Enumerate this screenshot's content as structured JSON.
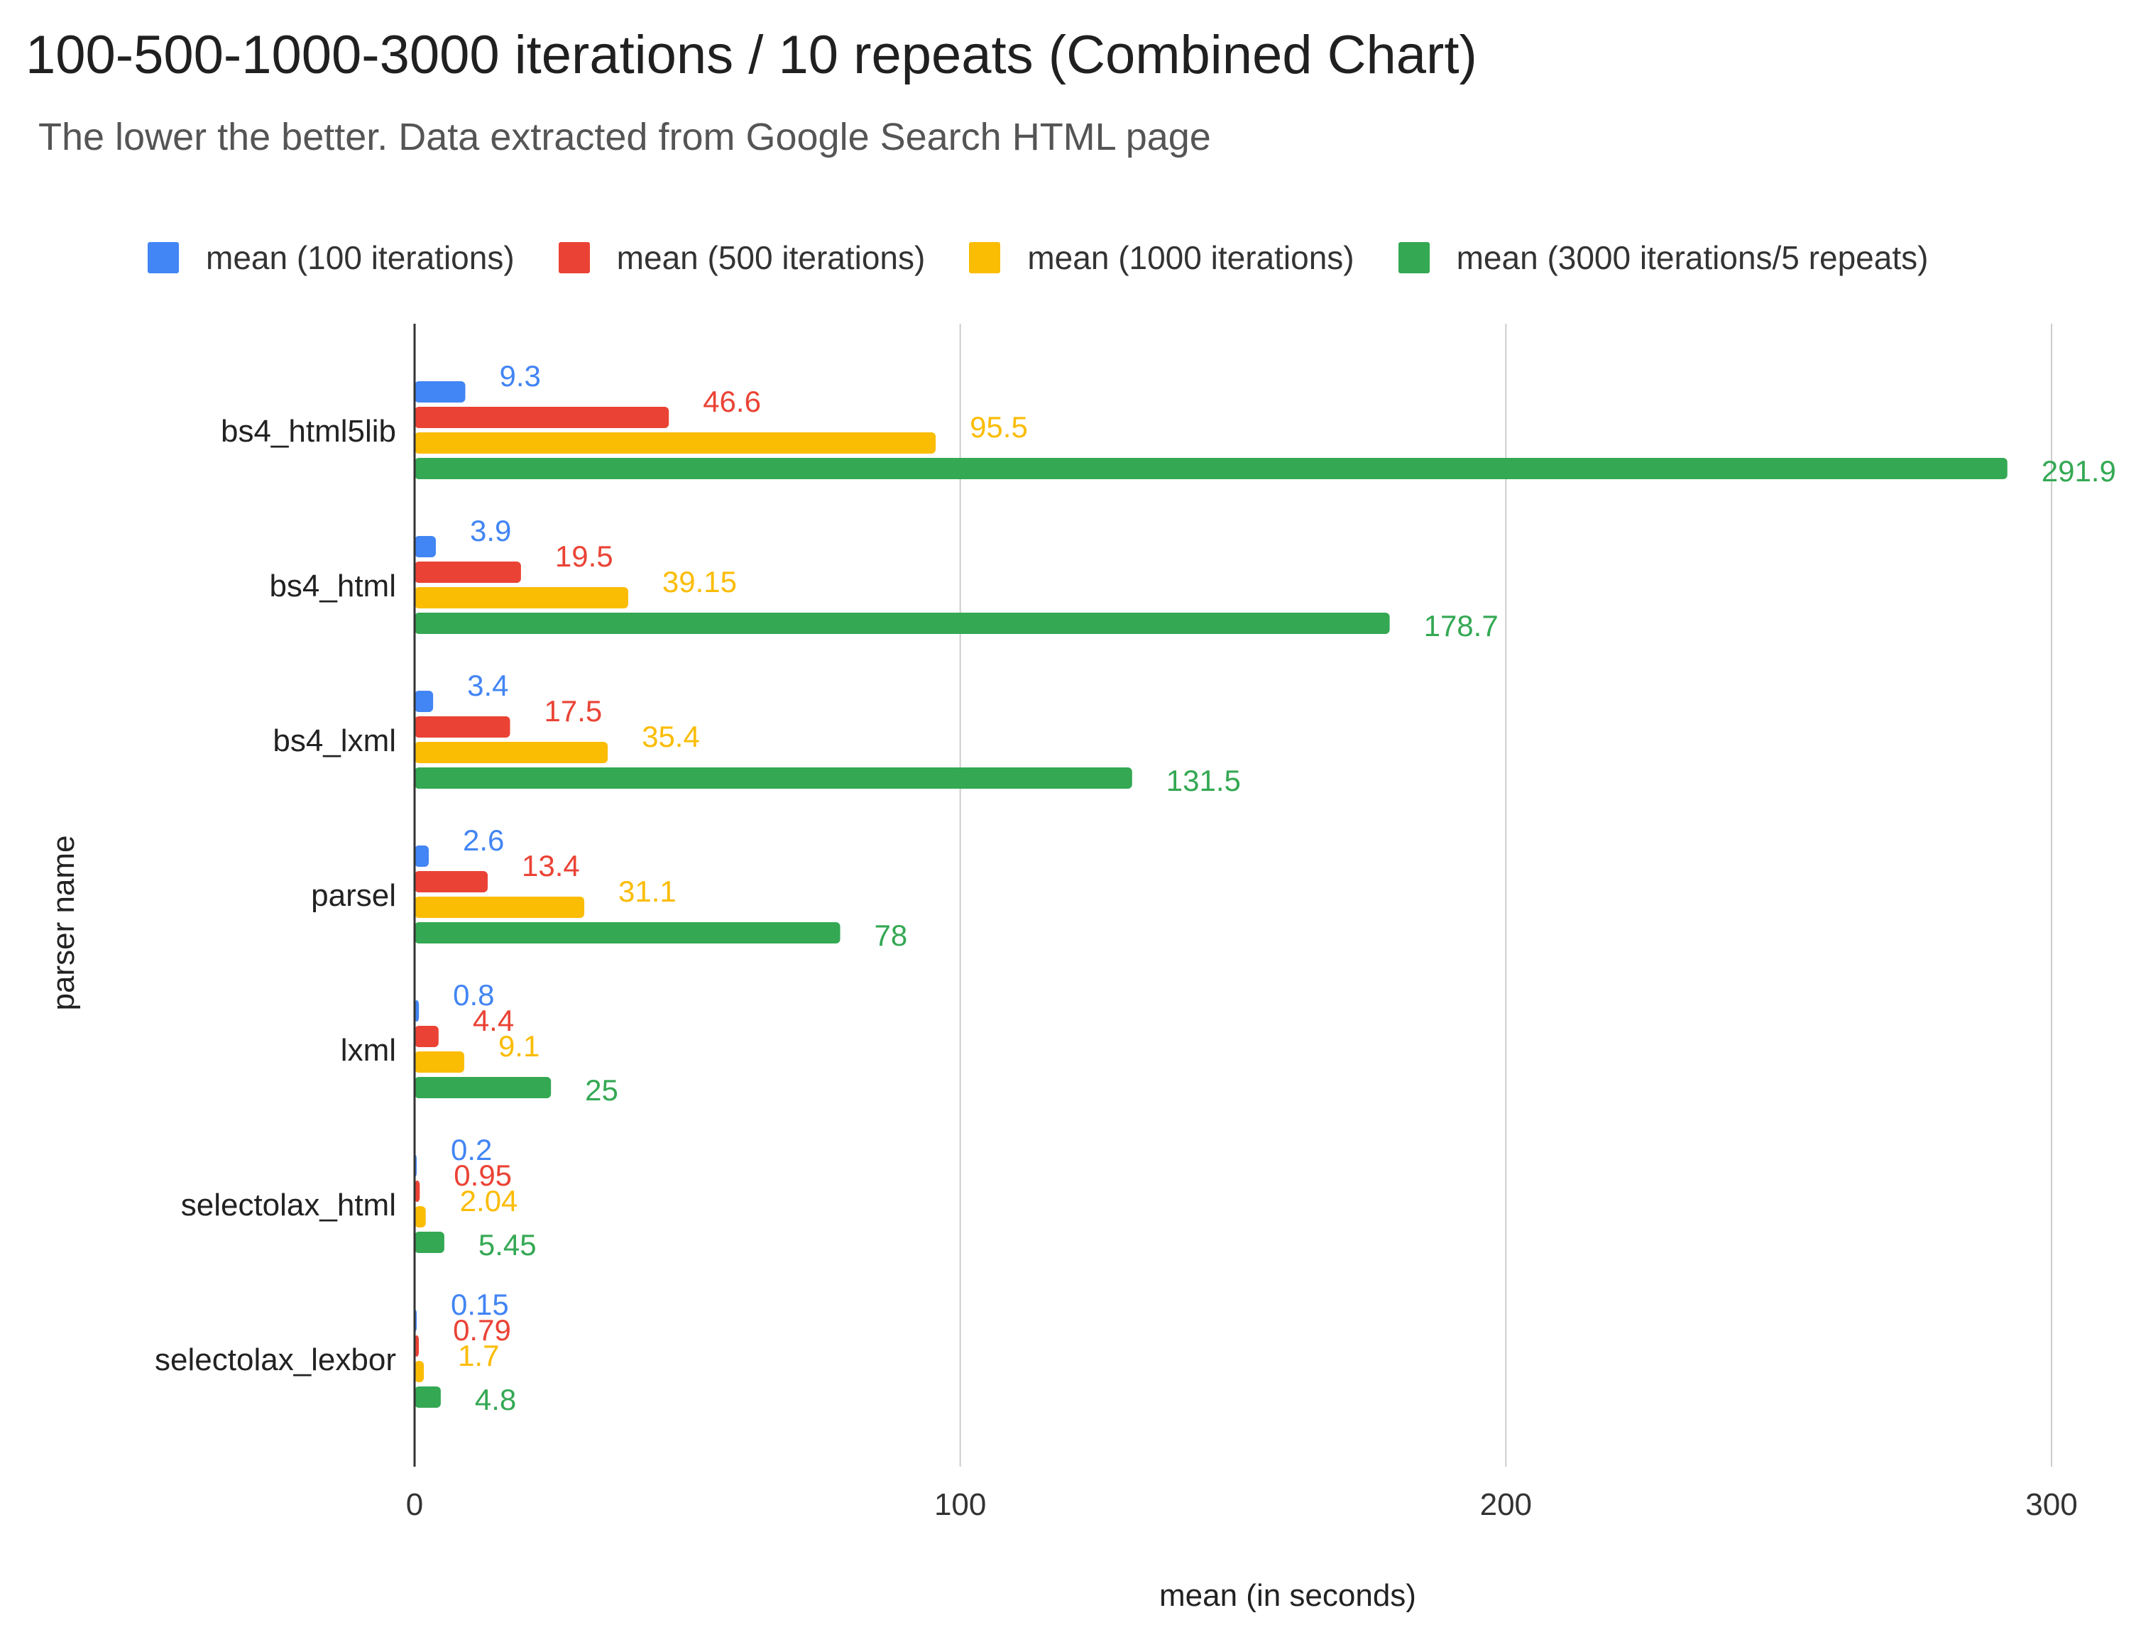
{
  "chart_data": {
    "type": "bar",
    "orientation": "horizontal",
    "title": "100-500-1000-3000 iterations / 10 repeats (Combined Chart)",
    "subtitle": "The lower the better. Data extracted from Google Search HTML page",
    "xlabel": "mean (in seconds)",
    "ylabel": "parser name",
    "xlim": [
      0,
      300
    ],
    "xticks": [
      0,
      100,
      200,
      300
    ],
    "grid": true,
    "legend_position": "top",
    "categories": [
      "bs4_html5lib",
      "bs4_html",
      "bs4_lxml",
      "parsel",
      "lxml",
      "selectolax_html",
      "selectolax_lexbor"
    ],
    "series": [
      {
        "name": "mean (100 iterations)",
        "color": "#4285F4",
        "values": [
          9.3,
          3.9,
          3.4,
          2.6,
          0.8,
          0.2,
          0.15
        ],
        "labels": [
          "9.3",
          "3.9",
          "3.4",
          "2.6",
          "0.8",
          "0.2",
          "0.15"
        ]
      },
      {
        "name": "mean (500 iterations)",
        "color": "#EA4335",
        "values": [
          46.6,
          19.5,
          17.5,
          13.4,
          4.4,
          0.95,
          0.79
        ],
        "labels": [
          "46.6",
          "19.5",
          "17.5",
          "13.4",
          "4.4",
          "0.95",
          "0.79"
        ]
      },
      {
        "name": "mean (1000 iterations)",
        "color": "#FBBC04",
        "values": [
          95.5,
          39.15,
          35.4,
          31.1,
          9.1,
          2.04,
          1.7
        ],
        "labels": [
          "95.5",
          "39.15",
          "35.4",
          "31.1",
          "9.1",
          "2.04",
          "1.7"
        ]
      },
      {
        "name": "mean (3000 iterations/5 repeats)",
        "color": "#34A853",
        "values": [
          291.9,
          178.7,
          131.5,
          78,
          25,
          5.45,
          4.8
        ],
        "labels": [
          "291.9",
          "178.7",
          "131.5",
          "78",
          "25",
          "5.45",
          "4.8"
        ]
      }
    ]
  }
}
